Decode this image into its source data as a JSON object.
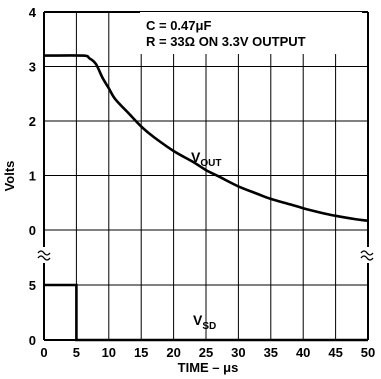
{
  "chart_data": [
    {
      "type": "line",
      "panel": "upper",
      "ylabel": "Volts",
      "xlabel": "TIME – μs",
      "xlim": [
        0,
        50
      ],
      "ylim": [
        0,
        4
      ],
      "xticks": [
        0,
        5,
        10,
        15,
        20,
        25,
        30,
        35,
        40,
        45,
        50
      ],
      "yticks": [
        0,
        1,
        2,
        3,
        4
      ],
      "grid": true,
      "annotations": [
        "C = 0.47μF",
        "R = 33Ω ON 3.3V OUTPUT"
      ],
      "series": [
        {
          "name": "VOUT",
          "label_main": "V",
          "label_sub": "OUT",
          "x": [
            0,
            6,
            7,
            8,
            9,
            10,
            11,
            13,
            15,
            17,
            20,
            23,
            25,
            27,
            30,
            33,
            35,
            38,
            40,
            43,
            45,
            48,
            50
          ],
          "y": [
            3.2,
            3.2,
            3.15,
            3.05,
            2.8,
            2.6,
            2.4,
            2.15,
            1.9,
            1.7,
            1.45,
            1.25,
            1.1,
            0.98,
            0.8,
            0.66,
            0.57,
            0.47,
            0.4,
            0.31,
            0.26,
            0.2,
            0.17
          ]
        }
      ]
    },
    {
      "type": "line",
      "panel": "lower",
      "xlim": [
        0,
        50
      ],
      "ylim": [
        0,
        5
      ],
      "yticks": [
        0,
        5
      ],
      "grid": true,
      "series": [
        {
          "name": "VSD",
          "label_main": "V",
          "label_sub": "SD",
          "x": [
            0,
            5,
            5,
            50
          ],
          "y": [
            5,
            5,
            0,
            0
          ]
        }
      ]
    }
  ]
}
